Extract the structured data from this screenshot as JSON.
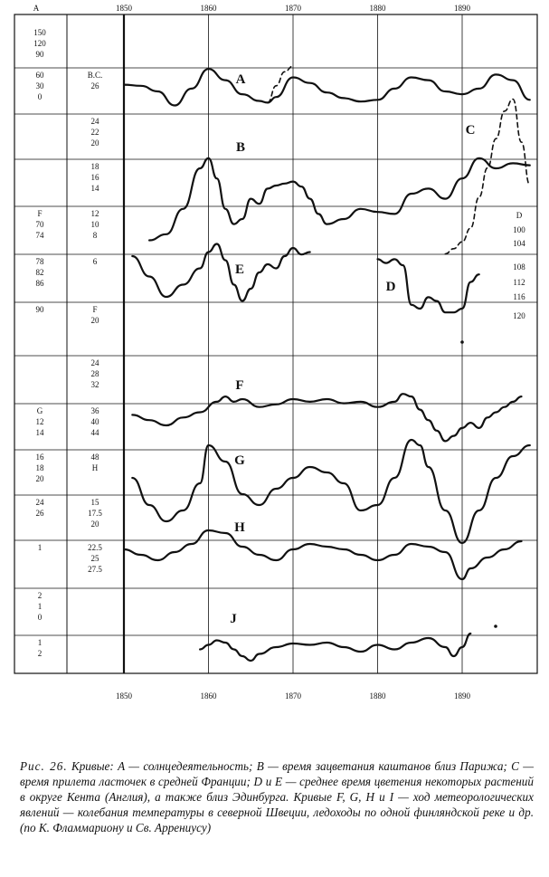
{
  "figure": {
    "x_ticks": [
      "1850",
      "1860",
      "1870",
      "1880",
      "1890"
    ],
    "corner_label": "A",
    "left_scale": [
      {
        "col1": [
          "150",
          "120",
          "90"
        ],
        "col2": []
      },
      {
        "col1": [
          "60",
          "30",
          "0"
        ],
        "col2": [
          "B.C.",
          "26"
        ]
      },
      {
        "col1": [],
        "col2": [
          "24",
          "22",
          "20"
        ]
      },
      {
        "col1": [],
        "col2": [
          "18",
          "16",
          "14"
        ]
      },
      {
        "col1": [
          "F",
          "70",
          "74"
        ],
        "col2": [
          "12",
          "10",
          "8"
        ]
      },
      {
        "col1": [
          "78",
          "82",
          "86"
        ],
        "col2": [
          "6"
        ]
      },
      {
        "col1": [
          "90"
        ],
        "col2": [
          "F",
          "20"
        ]
      },
      {
        "col1": [],
        "col2": [
          "24",
          "28",
          "32"
        ]
      },
      {
        "col1": [
          "G",
          "12",
          "14"
        ],
        "col2": [
          "36",
          "40",
          "44"
        ]
      },
      {
        "col1": [
          "16",
          "18",
          "20"
        ],
        "col2": [
          "48",
          "H"
        ]
      },
      {
        "col1": [
          "24",
          "26"
        ],
        "col2": [
          "15",
          "17.5",
          "20"
        ]
      },
      {
        "col1": [
          "1"
        ],
        "col2": [
          "22.5",
          "25",
          "27.5"
        ]
      },
      {
        "col1": [
          "2",
          "1",
          "0"
        ],
        "col2": []
      },
      {
        "col1": [
          "1",
          "2"
        ],
        "col2": []
      }
    ],
    "right_scale": [
      "D",
      "100",
      "104",
      "108",
      "112",
      "116",
      "120"
    ],
    "curve_labels": [
      "A",
      "B",
      "C",
      "E",
      "D",
      "F",
      "G",
      "H",
      "J"
    ]
  },
  "chart_data": {
    "type": "line",
    "xlabel": "",
    "ylabel": "",
    "xlim": [
      1850,
      1899
    ],
    "x_ticks": [
      1850,
      1860,
      1870,
      1880,
      1890
    ],
    "grid": true,
    "series": [
      {
        "name": "A",
        "style": "solid",
        "x": [
          1850,
          1852,
          1854,
          1856,
          1858,
          1860,
          1862,
          1864,
          1866,
          1867,
          1868,
          1870,
          1872,
          1874,
          1876,
          1878,
          1880,
          1882,
          1884,
          1886,
          1888,
          1890,
          1892,
          1894,
          1896,
          1898
        ],
        "y": [
          0.62,
          0.6,
          0.5,
          0.25,
          0.55,
          0.9,
          0.7,
          0.45,
          0.33,
          0.3,
          0.4,
          0.75,
          0.65,
          0.48,
          0.38,
          0.32,
          0.35,
          0.55,
          0.75,
          0.7,
          0.5,
          0.45,
          0.55,
          0.8,
          0.7,
          0.35
        ]
      },
      {
        "name": "A (dashed)",
        "style": "dashed",
        "x": [
          1867,
          1868,
          1869,
          1870
        ],
        "y": [
          0.3,
          0.6,
          0.85,
          0.95
        ]
      },
      {
        "name": "B",
        "style": "solid",
        "x": [
          1853,
          1855,
          1857,
          1859,
          1860,
          1861,
          1862,
          1863,
          1864,
          1865,
          1866,
          1867,
          1868,
          1869,
          1870,
          1871,
          1872,
          1873,
          1874,
          1876,
          1878,
          1880,
          1882,
          1884,
          1886,
          1888,
          1890,
          1892,
          1894,
          1896,
          1898
        ],
        "y": [
          0.04,
          0.1,
          0.35,
          0.75,
          0.85,
          0.65,
          0.35,
          0.2,
          0.25,
          0.45,
          0.4,
          0.55,
          0.58,
          0.6,
          0.62,
          0.57,
          0.45,
          0.3,
          0.2,
          0.25,
          0.35,
          0.32,
          0.3,
          0.5,
          0.55,
          0.45,
          0.65,
          0.85,
          0.75,
          0.8,
          0.78
        ]
      },
      {
        "name": "C",
        "style": "dashed",
        "x": [
          1888,
          1889,
          1890,
          1891,
          1892,
          1893,
          1894,
          1895,
          1896,
          1897,
          1898
        ],
        "y": [
          0.05,
          0.08,
          0.12,
          0.2,
          0.38,
          0.55,
          0.72,
          0.88,
          0.95,
          0.7,
          0.45
        ]
      },
      {
        "name": "E",
        "style": "solid",
        "x": [
          1851,
          1853,
          1855,
          1857,
          1859,
          1860,
          1861,
          1862,
          1863,
          1864,
          1865,
          1866,
          1867,
          1868,
          1869,
          1870,
          1871,
          1872
        ],
        "y": [
          0.8,
          0.55,
          0.3,
          0.45,
          0.65,
          0.85,
          0.95,
          0.75,
          0.45,
          0.25,
          0.4,
          0.6,
          0.7,
          0.65,
          0.8,
          0.9,
          0.82,
          0.85
        ]
      },
      {
        "name": "D",
        "style": "solid",
        "x": [
          1880,
          1881,
          1882,
          1883,
          1884,
          1885,
          1886,
          1887,
          1888,
          1889,
          1890,
          1891,
          1892
        ],
        "y": [
          0.9,
          0.85,
          0.9,
          0.82,
          0.3,
          0.25,
          0.4,
          0.35,
          0.2,
          0.2,
          0.25,
          0.6,
          0.7
        ]
      },
      {
        "name": "F",
        "style": "solid",
        "x": [
          1851,
          1853,
          1855,
          1857,
          1859,
          1861,
          1862,
          1863,
          1864,
          1866,
          1868,
          1870,
          1872,
          1874,
          1876,
          1878,
          1880,
          1882,
          1883,
          1884,
          1885,
          1886,
          1887,
          1888,
          1889,
          1890,
          1891,
          1892,
          1893,
          1894,
          1895,
          1896,
          1897
        ],
        "y": [
          0.2,
          0.1,
          0.0,
          0.15,
          0.25,
          0.45,
          0.55,
          0.45,
          0.5,
          0.35,
          0.4,
          0.5,
          0.45,
          0.5,
          0.42,
          0.45,
          0.35,
          0.45,
          0.6,
          0.55,
          0.3,
          0.1,
          -0.1,
          -0.3,
          -0.2,
          -0.05,
          0.05,
          -0.05,
          0.15,
          0.25,
          0.35,
          0.45,
          0.55
        ]
      },
      {
        "name": "G",
        "style": "solid",
        "x": [
          1851,
          1853,
          1855,
          1857,
          1859,
          1860,
          1862,
          1864,
          1866,
          1868,
          1870,
          1872,
          1874,
          1876,
          1878,
          1880,
          1882,
          1884,
          1885,
          1886,
          1888,
          1890,
          1892,
          1894,
          1896,
          1898
        ],
        "y": [
          0.6,
          0.35,
          0.2,
          0.3,
          0.55,
          0.9,
          0.75,
          0.45,
          0.35,
          0.5,
          0.6,
          0.7,
          0.65,
          0.55,
          0.3,
          0.35,
          0.6,
          0.95,
          0.9,
          0.7,
          0.3,
          0.0,
          0.3,
          0.6,
          0.8,
          0.9
        ]
      },
      {
        "name": "H",
        "style": "solid",
        "x": [
          1850,
          1852,
          1854,
          1856,
          1858,
          1860,
          1862,
          1864,
          1866,
          1868,
          1870,
          1872,
          1874,
          1876,
          1878,
          1880,
          1882,
          1884,
          1886,
          1888,
          1890,
          1891,
          1893,
          1895,
          1897
        ],
        "y": [
          0.55,
          0.45,
          0.35,
          0.5,
          0.65,
          0.9,
          0.85,
          0.6,
          0.45,
          0.35,
          0.55,
          0.65,
          0.6,
          0.55,
          0.45,
          0.35,
          0.45,
          0.65,
          0.6,
          0.5,
          0.0,
          0.2,
          0.4,
          0.55,
          0.7
        ]
      },
      {
        "name": "J",
        "style": "solid",
        "x": [
          1859,
          1860,
          1861,
          1862,
          1863,
          1864,
          1865,
          1866,
          1868,
          1870,
          1872,
          1874,
          1876,
          1878,
          1880,
          1882,
          1884,
          1886,
          1888,
          1889,
          1890,
          1891
        ],
        "y": [
          0.45,
          0.55,
          0.65,
          0.6,
          0.45,
          0.3,
          0.2,
          0.35,
          0.5,
          0.58,
          0.55,
          0.6,
          0.5,
          0.4,
          0.55,
          0.45,
          0.6,
          0.7,
          0.5,
          0.3,
          0.5,
          0.8
        ]
      }
    ]
  },
  "caption": {
    "fig_label": "Рис. 26.",
    "text": "Кривые: A — солнцедеятельность; B — время зацветания каштанов близ Парижа; C — время прилета ласточек в средней Франции; D и E — среднее время цветения некоторых растений в округе Кента (Англия), а также близ Эдинбурга. Кривые F, G, H и I — ход метеорологических явлений — колебания температуры в северной Швеции, ледоходы по одной финляндской реке и др. (по К. Фламмариону и Св. Аррениусу)"
  }
}
